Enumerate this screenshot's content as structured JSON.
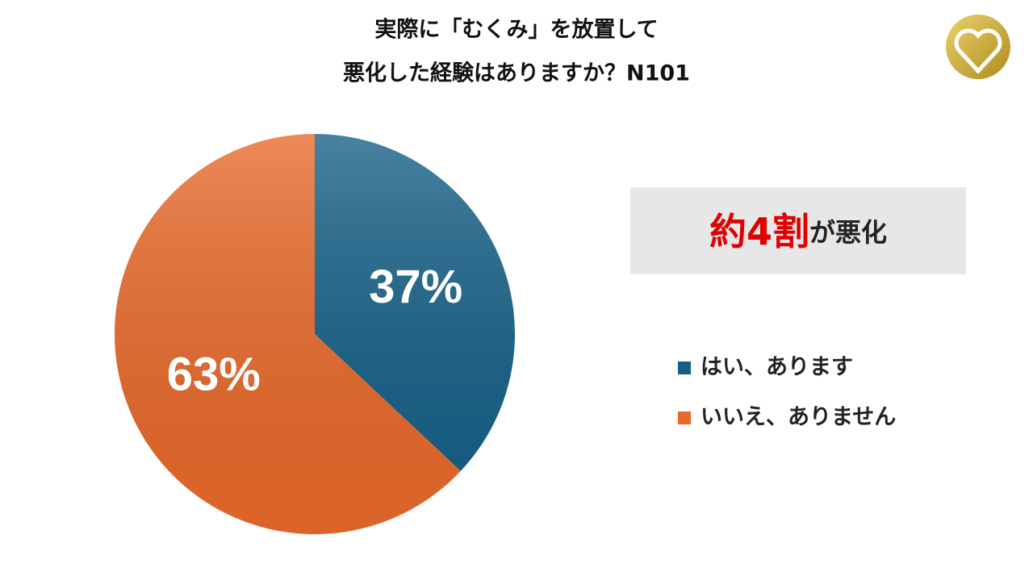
{
  "chart_data": {
    "type": "pie",
    "title_lines": [
      "実際に「むくみ」を放置して",
      "悪化した経験はありますか？N101"
    ],
    "categories": [
      "はい、あります",
      "いいえ、ありません"
    ],
    "values": [
      37,
      63
    ],
    "value_labels": [
      "37%",
      "63%"
    ],
    "colors": [
      "#145f86",
      "#e8692a"
    ],
    "annotation": {
      "highlight": "約4割",
      "text": "が悪化"
    }
  }
}
